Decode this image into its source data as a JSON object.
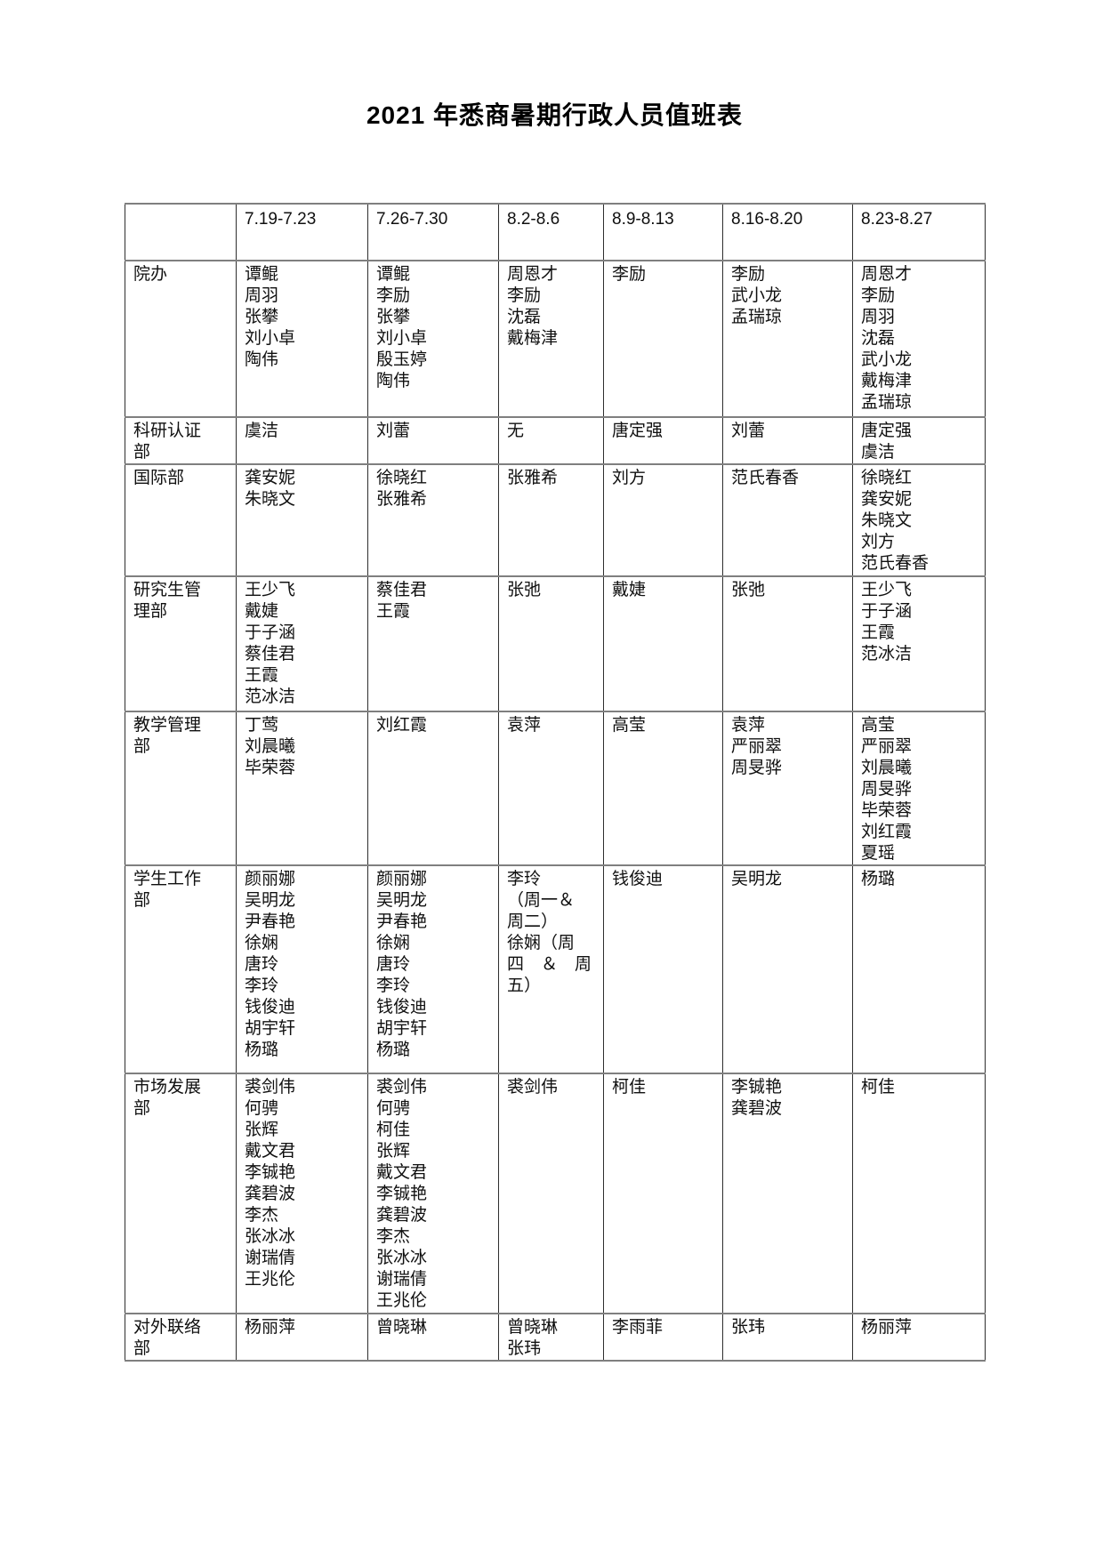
{
  "page": {
    "title": "2021 年悉商暑期行政人员值班表"
  },
  "table": {
    "corner": "",
    "date_columns": [
      "7.19-7.23",
      "7.26-7.30",
      "8.2-8.6",
      "8.9-8.13",
      "8.16-8.20",
      "8.23-8.27"
    ],
    "rows": [
      {
        "dept": "院办",
        "cells": [
          "谭鲲\n周羽\n张攀\n刘小卓\n陶伟",
          "谭鲲\n李励\n张攀\n刘小卓\n殷玉婷\n陶伟",
          "周恩才\n李励\n沈磊\n戴梅津",
          "李励",
          "李励\n武小龙\n孟瑞琼",
          "周恩才\n李励\n周羽\n沈磊\n武小龙\n戴梅津\n孟瑞琼"
        ]
      },
      {
        "dept": "科研认证\n部",
        "cells": [
          "虞洁",
          "刘蕾",
          "无",
          "唐定强",
          "刘蕾",
          "唐定强\n虞洁"
        ]
      },
      {
        "dept": "国际部",
        "cells": [
          "龚安妮\n朱晓文",
          "徐晓红\n张雅希",
          "张雅希",
          "刘方",
          "范氏春香",
          "徐晓红\n龚安妮\n朱晓文\n刘方\n范氏春香"
        ]
      },
      {
        "dept": "研究生管\n理部",
        "cells": [
          "王少飞\n戴婕\n于子涵\n蔡佳君\n王霞\n范冰洁",
          "蔡佳君\n王霞",
          "张弛",
          "戴婕",
          "张弛",
          "王少飞\n于子涵\n王霞\n范冰洁"
        ]
      },
      {
        "dept": "教学管理\n部",
        "cells": [
          "丁莺\n刘晨曦\n毕荣蓉",
          "刘红霞",
          "袁萍",
          "高莹",
          "袁萍\n严丽翠\n周旻骅",
          "高莹\n严丽翠\n刘晨曦\n周旻骅\n毕荣蓉\n刘红霞\n夏瑶"
        ]
      },
      {
        "dept": "学生工作\n部",
        "cells": [
          "颜丽娜\n吴明龙\n尹春艳\n徐娴\n唐玲\n李玲\n钱俊迪\n胡宇轩\n杨璐",
          "颜丽娜\n吴明龙\n尹春艳\n徐娴\n唐玲\n李玲\n钱俊迪\n胡宇轩\n杨璐",
          "李玲\n（周一＆\n周二）\n徐娴（周\n四　＆　周\n五）",
          "钱俊迪",
          "吴明龙",
          "杨璐"
        ]
      },
      {
        "dept": "市场发展\n部",
        "cells": [
          "裘剑伟\n何骋\n张辉\n戴文君\n李铖艳\n龚碧波\n李杰\n张冰冰\n谢瑞倩\n王兆伦",
          "裘剑伟\n何骋\n柯佳\n张辉\n戴文君\n李铖艳\n龚碧波\n李杰\n张冰冰\n谢瑞倩\n王兆伦",
          "裘剑伟",
          "柯佳",
          "李铖艳\n龚碧波",
          "柯佳"
        ]
      },
      {
        "dept": "对外联络\n部",
        "cells": [
          "杨丽萍",
          "曾晓琳",
          "曾晓琳\n张玮",
          "李雨菲",
          "张玮",
          "杨丽萍"
        ]
      }
    ]
  }
}
